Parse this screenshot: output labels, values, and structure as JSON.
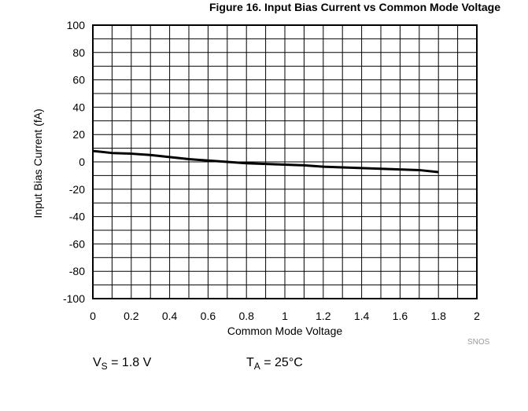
{
  "chart_data": {
    "type": "line",
    "title": "Figure 16. Input Bias Current vs Common Mode Voltage",
    "xlabel": "Common Mode Voltage",
    "ylabel": "Input Bias Current (fA)",
    "xlim": [
      0,
      2
    ],
    "ylim": [
      -100,
      100
    ],
    "x_ticks": [
      0,
      0.1,
      0.2,
      0.3,
      0.4,
      0.5,
      0.6,
      0.7,
      0.8,
      0.9,
      1.0,
      1.1,
      1.2,
      1.3,
      1.4,
      1.5,
      1.6,
      1.7,
      1.8,
      1.9,
      2.0
    ],
    "x_tick_labels": [
      "0",
      "0.2",
      "0.4",
      "0.6",
      "0.8",
      "1",
      "1.2",
      "1.4",
      "1.6",
      "1.8",
      "2"
    ],
    "y_ticks": [
      -100,
      -90,
      -80,
      -70,
      -60,
      -50,
      -40,
      -30,
      -20,
      -10,
      0,
      10,
      20,
      30,
      40,
      50,
      60,
      70,
      80,
      90,
      100
    ],
    "y_tick_labels": [
      "100",
      "80",
      "60",
      "40",
      "20",
      "0",
      "-20",
      "-40",
      "-60",
      "-80",
      "-100"
    ],
    "grid": true,
    "series": [
      {
        "x": [
          0,
          0.1,
          0.2,
          0.3,
          0.4,
          0.5,
          0.6,
          0.7,
          0.8,
          0.9,
          1.0,
          1.1,
          1.2,
          1.3,
          1.4,
          1.5,
          1.6,
          1.7,
          1.8
        ],
        "values": [
          8,
          6.5,
          6,
          5,
          3.5,
          2,
          1,
          0,
          -1,
          -1.5,
          -2,
          -2.5,
          -3.5,
          -4,
          -4.5,
          -5,
          -5.5,
          -6,
          -7.5
        ]
      }
    ]
  },
  "conditions": {
    "vs_symbol": "V",
    "vs_sub": "S",
    "vs_value": " = 1.8 V",
    "ta_symbol": "T",
    "ta_sub": "A",
    "ta_value": " = 25°C"
  },
  "footnote": "SNOS",
  "colors": {
    "line": "#000000",
    "grid": "#000000",
    "background": "#ffffff",
    "footnote": "#9a9a9a"
  }
}
